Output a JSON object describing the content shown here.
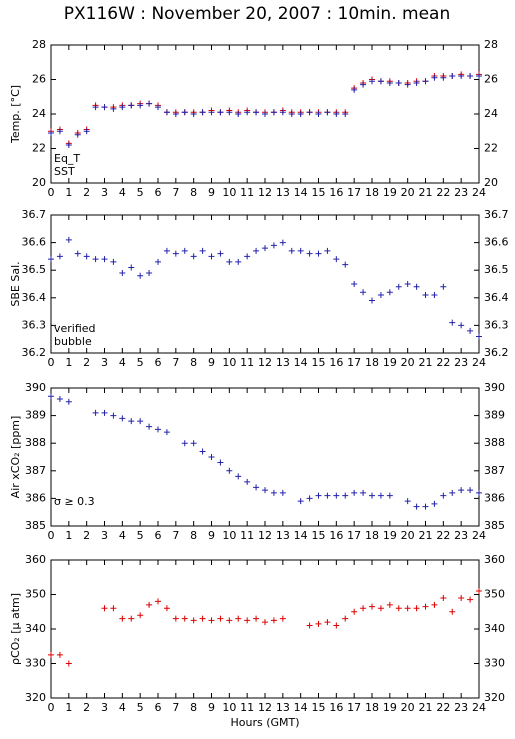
{
  "chart_data": [
    {
      "type": "scatter",
      "title": "PX116W : November 20, 2007 : 10min. mean",
      "ylabel": "Temp. [°C]",
      "x": [
        0,
        0.5,
        1,
        1.5,
        2,
        2.5,
        3,
        3.5,
        4,
        4.5,
        5,
        5.5,
        6,
        6.5,
        7,
        7.5,
        8,
        8.5,
        9,
        9.5,
        10,
        10.5,
        11,
        11.5,
        12,
        12.5,
        13,
        13.5,
        14,
        14.5,
        15,
        15.5,
        16,
        16.5,
        17,
        17.5,
        18,
        18.5,
        19,
        19.5,
        20,
        20.5,
        21,
        21.5,
        22,
        22.5,
        23,
        23.5,
        24
      ],
      "series": [
        {
          "name": "Eq_T",
          "color": "#dd0000",
          "values": [
            23.0,
            23.1,
            22.3,
            22.9,
            23.1,
            24.5,
            24.4,
            24.4,
            24.5,
            24.5,
            24.6,
            24.6,
            24.5,
            24.1,
            24.1,
            24.1,
            24.1,
            24.1,
            24.2,
            24.1,
            24.2,
            24.1,
            24.2,
            24.1,
            24.1,
            24.1,
            24.2,
            24.1,
            24.1,
            24.1,
            24.1,
            24.1,
            24.1,
            24.1,
            25.5,
            25.8,
            26.0,
            25.9,
            25.9,
            25.8,
            25.8,
            25.9,
            25.9,
            26.2,
            26.2,
            26.2,
            26.3,
            26.2,
            26.3
          ]
        },
        {
          "name": "SST",
          "color": "#2222aa",
          "values": [
            22.9,
            23.0,
            22.2,
            22.8,
            23.0,
            24.4,
            24.4,
            24.3,
            24.4,
            24.5,
            24.5,
            24.6,
            24.4,
            24.1,
            24.0,
            24.1,
            24.0,
            24.1,
            24.1,
            24.1,
            24.1,
            24.0,
            24.1,
            24.1,
            24.0,
            24.1,
            24.1,
            24.0,
            24.0,
            24.1,
            24.0,
            24.1,
            24.0,
            24.0,
            25.4,
            25.7,
            25.9,
            25.9,
            25.8,
            25.8,
            25.7,
            25.8,
            25.9,
            26.1,
            26.1,
            26.2,
            26.2,
            26.2,
            26.2
          ]
        }
      ],
      "ylim": [
        20,
        28
      ],
      "yticks": [
        20,
        22,
        24,
        26,
        28
      ],
      "xlim": [
        0,
        24
      ],
      "xticks": [
        0,
        1,
        2,
        3,
        4,
        5,
        6,
        7,
        8,
        9,
        10,
        11,
        12,
        13,
        14,
        15,
        16,
        17,
        18,
        19,
        20,
        21,
        22,
        23,
        24
      ]
    },
    {
      "type": "scatter",
      "ylabel": "SBE Sal.",
      "x": [
        0,
        0.5,
        1,
        1.5,
        2,
        2.5,
        3,
        3.5,
        4,
        4.5,
        5,
        5.5,
        6,
        6.5,
        7,
        7.5,
        8,
        8.5,
        9,
        9.5,
        10,
        10.5,
        11,
        11.5,
        12,
        12.5,
        13,
        13.5,
        14,
        14.5,
        15,
        15.5,
        16,
        16.5,
        17,
        17.5,
        18,
        18.5,
        19,
        19.5,
        20,
        20.5,
        21,
        21.5,
        22,
        22.5,
        23,
        23.5,
        24
      ],
      "series": [
        {
          "name": "verified",
          "color": "#2222aa",
          "values": [
            36.54,
            36.55,
            36.61,
            36.56,
            36.55,
            36.54,
            36.54,
            36.53,
            36.49,
            36.51,
            36.48,
            36.49,
            36.53,
            36.57,
            36.56,
            36.57,
            36.55,
            36.57,
            36.55,
            36.56,
            36.53,
            36.53,
            36.55,
            36.57,
            36.58,
            36.59,
            36.6,
            36.57,
            36.57,
            36.56,
            36.56,
            36.57,
            36.54,
            36.52,
            36.45,
            36.42,
            36.39,
            36.41,
            36.42,
            36.44,
            36.45,
            36.44,
            36.41,
            36.41,
            36.44,
            36.31,
            36.3,
            36.28,
            36.26
          ]
        },
        {
          "name": "bubble",
          "color": "#cc00cc",
          "values": [
            null,
            null,
            null,
            null,
            null,
            null,
            null,
            null,
            null,
            null,
            null,
            null,
            null,
            null,
            null,
            null,
            null,
            null,
            null,
            null,
            null,
            null,
            null,
            null,
            null,
            null,
            null,
            null,
            null,
            null,
            null,
            null,
            null,
            null,
            null,
            null,
            null,
            null,
            null,
            null,
            null,
            null,
            null,
            null,
            null,
            null,
            null,
            null,
            null
          ]
        }
      ],
      "ylim": [
        36.2,
        36.7
      ],
      "yticks": [
        36.2,
        36.3,
        36.4,
        36.5,
        36.6,
        36.7
      ],
      "xlim": [
        0,
        24
      ],
      "xticks": [
        0,
        1,
        2,
        3,
        4,
        5,
        6,
        7,
        8,
        9,
        10,
        11,
        12,
        13,
        14,
        15,
        16,
        17,
        18,
        19,
        20,
        21,
        22,
        23,
        24
      ]
    },
    {
      "type": "scatter",
      "ylabel": "Air xCO₂ [ppm]",
      "annotation": "σ ≥ 0.3",
      "annotation_color": "#cc00cc",
      "x": [
        0,
        0.5,
        1,
        1.5,
        2,
        2.5,
        3,
        3.5,
        4,
        4.5,
        5,
        5.5,
        6,
        6.5,
        7,
        7.5,
        8,
        8.5,
        9,
        9.5,
        10,
        10.5,
        11,
        11.5,
        12,
        12.5,
        13,
        13.5,
        14,
        14.5,
        15,
        15.5,
        16,
        16.5,
        17,
        17.5,
        18,
        18.5,
        19,
        19.5,
        20,
        20.5,
        21,
        21.5,
        22,
        22.5,
        23,
        23.5,
        24
      ],
      "series": [
        {
          "name": "xCO2",
          "color": "#2222aa",
          "values": [
            389.7,
            389.6,
            389.5,
            null,
            null,
            389.1,
            389.1,
            389.0,
            388.9,
            388.8,
            388.8,
            388.6,
            388.5,
            388.4,
            null,
            388.0,
            388.0,
            387.7,
            387.5,
            387.3,
            387.0,
            386.8,
            386.6,
            386.4,
            386.3,
            386.2,
            386.2,
            null,
            385.9,
            386.0,
            386.1,
            386.1,
            386.1,
            386.1,
            386.2,
            386.2,
            386.1,
            386.1,
            386.1,
            null,
            385.9,
            385.7,
            385.7,
            385.8,
            386.1,
            386.2,
            386.3,
            386.3,
            386.2
          ]
        }
      ],
      "ylim": [
        385,
        390
      ],
      "yticks": [
        385,
        386,
        387,
        388,
        389,
        390
      ],
      "xlim": [
        0,
        24
      ],
      "xticks": [
        0,
        1,
        2,
        3,
        4,
        5,
        6,
        7,
        8,
        9,
        10,
        11,
        12,
        13,
        14,
        15,
        16,
        17,
        18,
        19,
        20,
        21,
        22,
        23,
        24
      ]
    },
    {
      "type": "scatter",
      "ylabel": "ρCO₂ [μ atm]",
      "xlabel": "Hours (GMT)",
      "x": [
        0,
        0.5,
        1,
        1.5,
        2,
        2.5,
        3,
        3.5,
        4,
        4.5,
        5,
        5.5,
        6,
        6.5,
        7,
        7.5,
        8,
        8.5,
        9,
        9.5,
        10,
        10.5,
        11,
        11.5,
        12,
        12.5,
        13,
        13.5,
        14,
        14.5,
        15,
        15.5,
        16,
        16.5,
        17,
        17.5,
        18,
        18.5,
        19,
        19.5,
        20,
        20.5,
        21,
        21.5,
        22,
        22.5,
        23,
        23.5,
        24
      ],
      "series": [
        {
          "name": "pCO2",
          "color": "#dd0000",
          "values": [
            332.5,
            332.5,
            330,
            null,
            null,
            null,
            346,
            346,
            343,
            343,
            344,
            347,
            348,
            346,
            343,
            343,
            342.5,
            343,
            342.5,
            343,
            342.5,
            343,
            342.5,
            343,
            342,
            342.5,
            343,
            null,
            null,
            341,
            341.5,
            342,
            341,
            343,
            345,
            346,
            346.5,
            346,
            347,
            346,
            346,
            346,
            346.5,
            347,
            349,
            345,
            349,
            348.5,
            351
          ]
        }
      ],
      "ylim": [
        320,
        360
      ],
      "yticks": [
        320,
        330,
        340,
        350,
        360
      ],
      "xlim": [
        0,
        24
      ],
      "xticks": [
        0,
        1,
        2,
        3,
        4,
        5,
        6,
        7,
        8,
        9,
        10,
        11,
        12,
        13,
        14,
        15,
        16,
        17,
        18,
        19,
        20,
        21,
        22,
        23,
        24
      ]
    }
  ]
}
